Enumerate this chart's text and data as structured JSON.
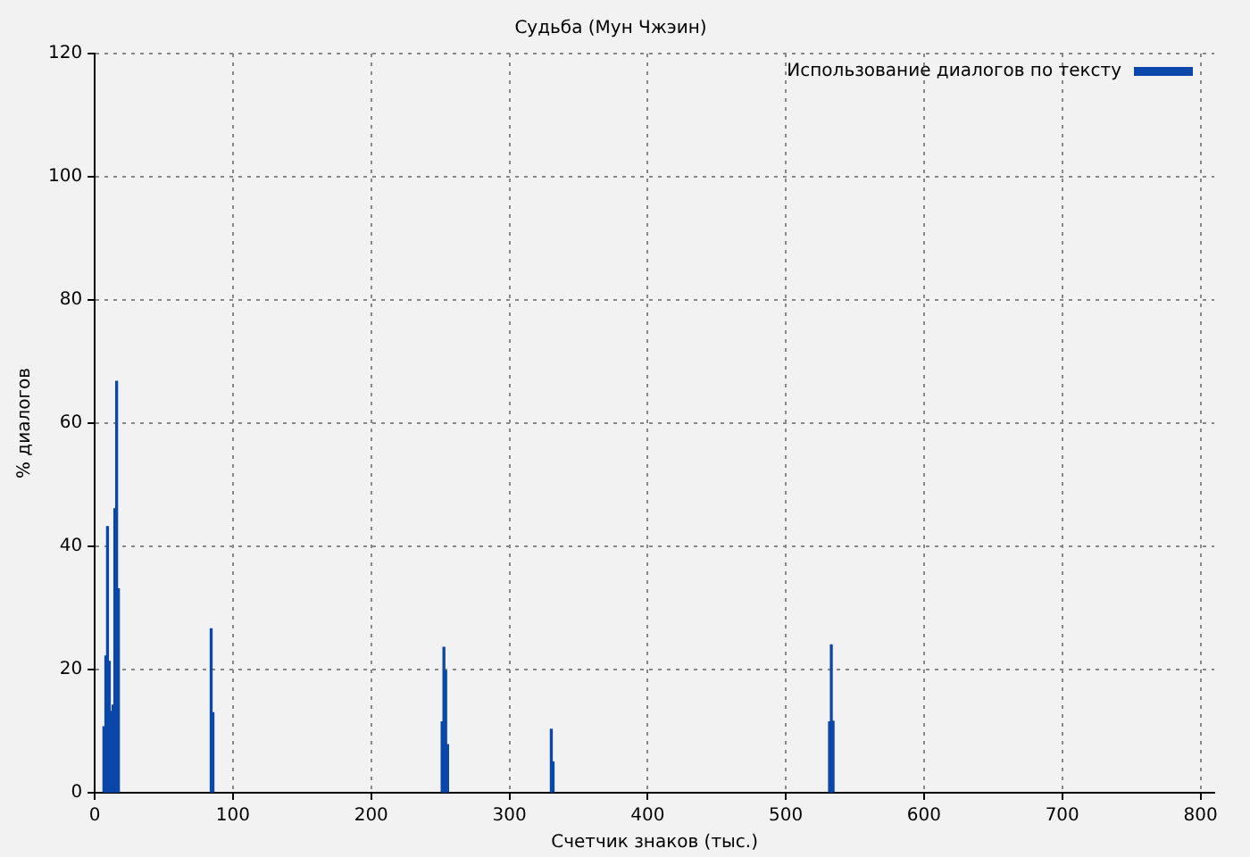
{
  "chart_data": {
    "type": "bar",
    "title": "Судьба (Мун Чжэин)",
    "xlabel": "Счетчик знаков (тыс.)",
    "ylabel": "% диалогов",
    "x": [
      6.6,
      8,
      9.2,
      10.5,
      11.8,
      13.2,
      14.5,
      15.8,
      17.1,
      84.2,
      85.5,
      251.3,
      252.6,
      253.9,
      255.3,
      330.3,
      331.6,
      531.6,
      532.9,
      534.2
    ],
    "series": [
      {
        "name": "Использование диалогов по тексту",
        "color": "#0a47a9",
        "values": [
          10.7,
          22.2,
          43.2,
          21.3,
          13.2,
          14.2,
          46.1,
          66.8,
          33.1,
          26.6,
          13,
          11.5,
          23.6,
          19.8,
          7.8,
          10.3,
          5,
          11.5,
          24,
          11.6
        ]
      }
    ],
    "xlim": [
      0,
      810
    ],
    "xticks": [
      0,
      100,
      200,
      300,
      400,
      500,
      600,
      700,
      800
    ],
    "ylim": [
      0,
      120
    ],
    "yticks": [
      0,
      20,
      40,
      60,
      80,
      100,
      120
    ],
    "grid": true,
    "legend": "top right"
  }
}
